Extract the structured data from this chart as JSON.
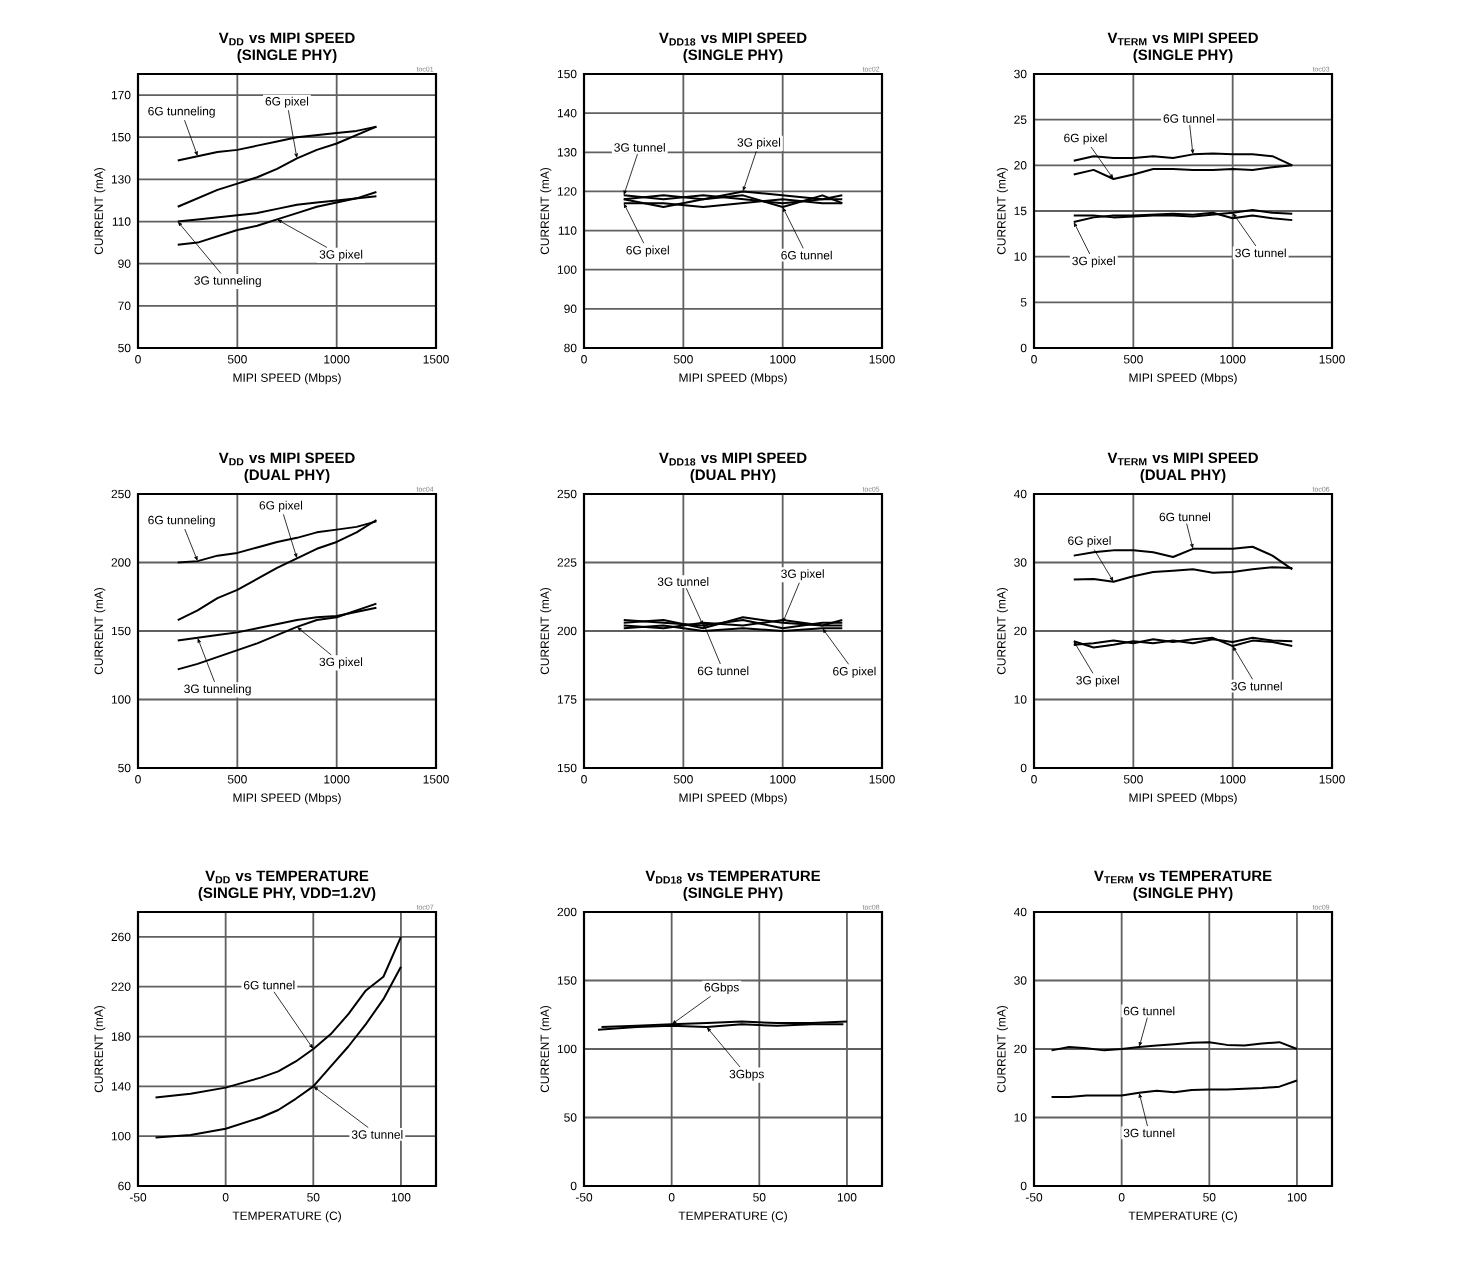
{
  "chart_data": [
    {
      "type": "line",
      "title": "V$_{DD}$ vs MIPI SPEED",
      "subtitle": "(SINGLE PHY)",
      "xlabel": "MIPI SPEED (Mbps)",
      "ylabel": "CURRENT (mA)",
      "xlim": [
        0,
        1500
      ],
      "ylim": [
        50,
        180
      ],
      "xticks": [
        0,
        500,
        1000,
        1500
      ],
      "yticks": [
        50,
        70,
        90,
        110,
        130,
        150,
        170
      ],
      "grid": true,
      "annotations": [
        "toc01"
      ],
      "series": [
        {
          "name": "6G tunneling",
          "color": "#000000",
          "x": [
            200,
            300,
            400,
            500,
            600,
            700,
            800,
            900,
            1000,
            1100,
            1200
          ],
          "values": [
            139,
            141,
            143,
            144,
            146,
            148,
            150,
            151,
            152,
            153,
            155
          ]
        },
        {
          "name": "6G pixel",
          "color": "#000000",
          "x": [
            200,
            300,
            400,
            500,
            600,
            700,
            800,
            900,
            1000,
            1100,
            1200
          ],
          "values": [
            117,
            121,
            125,
            128,
            131,
            135,
            140,
            144,
            147,
            151,
            155
          ]
        },
        {
          "name": "3G tunneling",
          "color": "#000000",
          "x": [
            200,
            300,
            400,
            500,
            600,
            700,
            800,
            900,
            1000,
            1100,
            1200
          ],
          "values": [
            110,
            111,
            112,
            113,
            114,
            116,
            118,
            119,
            120,
            121,
            122
          ]
        },
        {
          "name": "3G pixel",
          "color": "#000000",
          "x": [
            200,
            300,
            400,
            500,
            600,
            700,
            800,
            900,
            1000,
            1100,
            1200
          ],
          "values": [
            99,
            100,
            103,
            106,
            108,
            111,
            114,
            117,
            119,
            121,
            124
          ]
        }
      ]
    },
    {
      "type": "line",
      "title": "V$_{DD18}$ vs MIPI SPEED",
      "subtitle": "(SINGLE PHY)",
      "xlabel": "MIPI SPEED (Mbps)",
      "ylabel": "CURRENT (mA)",
      "xlim": [
        0,
        1500
      ],
      "ylim": [
        80,
        150
      ],
      "xticks": [
        0,
        500,
        1000,
        1500
      ],
      "yticks": [
        80,
        90,
        100,
        110,
        120,
        130,
        140,
        150
      ],
      "grid": true,
      "annotations": [
        "toc02"
      ],
      "series": [
        {
          "name": "3G tunnel",
          "color": "#000000",
          "x": [
            200,
            400,
            600,
            800,
            1000,
            1200,
            1300
          ],
          "values": [
            119,
            118,
            119,
            118,
            117,
            118,
            118
          ]
        },
        {
          "name": "3G pixel",
          "color": "#000000",
          "x": [
            200,
            400,
            600,
            800,
            1000,
            1200,
            1300
          ],
          "values": [
            118,
            119,
            118,
            120,
            119,
            118,
            119
          ]
        },
        {
          "name": "6G pixel",
          "color": "#000000",
          "x": [
            200,
            400,
            600,
            800,
            1000,
            1200,
            1300
          ],
          "values": [
            117,
            117,
            116,
            117,
            118,
            117,
            117
          ]
        },
        {
          "name": "6G tunnel",
          "color": "#000000",
          "x": [
            200,
            400,
            600,
            800,
            1000,
            1200,
            1300
          ],
          "values": [
            118,
            116,
            118,
            119,
            116,
            119,
            117
          ]
        }
      ]
    },
    {
      "type": "line",
      "title": "V$_{TERM}$ vs MIPI SPEED",
      "subtitle": "(SINGLE PHY)",
      "xlabel": "MIPI SPEED (Mbps)",
      "ylabel": "CURRENT (mA)",
      "xlim": [
        0,
        1500
      ],
      "ylim": [
        0,
        30
      ],
      "xticks": [
        0,
        500,
        1000,
        1500
      ],
      "yticks": [
        0,
        5,
        10,
        15,
        20,
        25,
        30
      ],
      "grid": true,
      "annotations": [
        "toc03"
      ],
      "series": [
        {
          "name": "6G tunnel",
          "color": "#000000",
          "x": [
            200,
            300,
            400,
            500,
            600,
            700,
            800,
            900,
            1000,
            1100,
            1200,
            1300
          ],
          "values": [
            20.5,
            21,
            20.8,
            20.8,
            21,
            20.8,
            21.2,
            21.3,
            21.2,
            21.2,
            21,
            20
          ]
        },
        {
          "name": "6G pixel",
          "color": "#000000",
          "x": [
            200,
            300,
            400,
            500,
            600,
            700,
            800,
            900,
            1000,
            1100,
            1200,
            1300
          ],
          "values": [
            19,
            19.5,
            18.5,
            19,
            19.6,
            19.6,
            19.5,
            19.5,
            19.6,
            19.5,
            19.8,
            20
          ]
        },
        {
          "name": "3G pixel",
          "color": "#000000",
          "x": [
            200,
            300,
            400,
            500,
            600,
            700,
            800,
            900,
            1000,
            1100,
            1200,
            1300
          ],
          "values": [
            13.8,
            14.3,
            14.5,
            14.5,
            14.6,
            14.7,
            14.6,
            14.8,
            14.2,
            14.5,
            14.2,
            14
          ]
        },
        {
          "name": "3G tunnel",
          "color": "#000000",
          "x": [
            200,
            300,
            400,
            500,
            600,
            700,
            800,
            900,
            1000,
            1100,
            1200,
            1300
          ],
          "values": [
            14.5,
            14.5,
            14.3,
            14.4,
            14.5,
            14.5,
            14.4,
            14.6,
            14.8,
            15.1,
            14.8,
            14.7
          ]
        }
      ]
    },
    {
      "type": "line",
      "title": "V$_{DD}$ vs MIPI SPEED",
      "subtitle": "(DUAL PHY)",
      "xlabel": "MIPI SPEED (Mbps)",
      "ylabel": "CURRENT (mA)",
      "xlim": [
        0,
        1500
      ],
      "ylim": [
        50,
        250
      ],
      "xticks": [
        0,
        500,
        1000,
        1500
      ],
      "yticks": [
        50,
        100,
        150,
        200,
        250
      ],
      "grid": true,
      "annotations": [
        "toc04"
      ],
      "series": [
        {
          "name": "6G tunneling",
          "color": "#000000",
          "x": [
            200,
            300,
            400,
            500,
            600,
            700,
            800,
            900,
            1000,
            1100,
            1200
          ],
          "values": [
            200,
            201,
            205,
            207,
            211,
            215,
            218,
            222,
            224,
            226,
            230
          ]
        },
        {
          "name": "6G pixel",
          "color": "#000000",
          "x": [
            200,
            300,
            400,
            500,
            600,
            700,
            800,
            900,
            1000,
            1100,
            1200
          ],
          "values": [
            158,
            165,
            174,
            180,
            188,
            196,
            203,
            210,
            215,
            222,
            231
          ]
        },
        {
          "name": "3G tunneling",
          "color": "#000000",
          "x": [
            200,
            300,
            400,
            500,
            600,
            700,
            800,
            900,
            1000,
            1100,
            1200
          ],
          "values": [
            143,
            145,
            147,
            149,
            152,
            155,
            158,
            160,
            161,
            164,
            167
          ]
        },
        {
          "name": "3G pixel",
          "color": "#000000",
          "x": [
            200,
            300,
            400,
            500,
            600,
            700,
            800,
            900,
            1000,
            1100,
            1200
          ],
          "values": [
            122,
            126,
            131,
            136,
            141,
            147,
            153,
            158,
            160,
            165,
            170
          ]
        }
      ]
    },
    {
      "type": "line",
      "title": "V$_{DD18}$ vs MIPI SPEED",
      "subtitle": "(DUAL PHY)",
      "xlabel": "MIPI SPEED (Mbps)",
      "ylabel": "CURRENT (mA)",
      "xlim": [
        0,
        1500
      ],
      "ylim": [
        150,
        250
      ],
      "xticks": [
        0,
        500,
        1000,
        1500
      ],
      "yticks": [
        150,
        175,
        200,
        225,
        250
      ],
      "grid": true,
      "annotations": [
        "toc05"
      ],
      "series": [
        {
          "name": "3G tunnel",
          "color": "#000000",
          "x": [
            200,
            400,
            600,
            800,
            1000,
            1200,
            1300
          ],
          "values": [
            204,
            203,
            202,
            204,
            201,
            203,
            203
          ]
        },
        {
          "name": "3G pixel",
          "color": "#000000",
          "x": [
            200,
            400,
            600,
            800,
            1000,
            1200,
            1300
          ],
          "values": [
            203,
            204,
            201,
            205,
            203,
            202,
            204
          ]
        },
        {
          "name": "6G tunnel",
          "color": "#000000",
          "x": [
            200,
            400,
            600,
            800,
            1000,
            1200,
            1300
          ],
          "values": [
            202,
            201,
            203,
            202,
            204,
            202,
            202
          ]
        },
        {
          "name": "6G pixel",
          "color": "#000000",
          "x": [
            200,
            400,
            600,
            800,
            1000,
            1200,
            1300
          ],
          "values": [
            201,
            202,
            200,
            201,
            200,
            201,
            201
          ]
        }
      ]
    },
    {
      "type": "line",
      "title": "V$_{TERM}$ vs MIPI SPEED",
      "subtitle": "(DUAL PHY)",
      "xlabel": "MIPI SPEED (Mbps)",
      "ylabel": "CURRENT (mA)",
      "xlim": [
        0,
        1500
      ],
      "ylim": [
        0,
        40
      ],
      "xticks": [
        0,
        500,
        1000,
        1500
      ],
      "yticks": [
        0,
        10,
        20,
        30,
        40
      ],
      "grid": true,
      "annotations": [
        "toc06"
      ],
      "series": [
        {
          "name": "6G tunnel",
          "color": "#000000",
          "x": [
            200,
            300,
            400,
            500,
            600,
            700,
            800,
            900,
            1000,
            1100,
            1200,
            1300
          ],
          "values": [
            31,
            31.5,
            31.8,
            31.8,
            31.5,
            30.8,
            32,
            32,
            32,
            32.3,
            31,
            29
          ]
        },
        {
          "name": "6G pixel",
          "color": "#000000",
          "x": [
            200,
            300,
            400,
            500,
            600,
            700,
            800,
            900,
            1000,
            1100,
            1200,
            1300
          ],
          "values": [
            27.5,
            27.6,
            27.2,
            28,
            28.6,
            28.8,
            29,
            28.5,
            28.6,
            29,
            29.3,
            29.2
          ]
        },
        {
          "name": "3G pixel",
          "color": "#000000",
          "x": [
            200,
            300,
            400,
            500,
            600,
            700,
            800,
            900,
            1000,
            1100,
            1200,
            1300
          ],
          "values": [
            18.5,
            17.6,
            18,
            18.5,
            18.2,
            18.6,
            18.2,
            18.8,
            18.4,
            19,
            18.6,
            18.5
          ]
        },
        {
          "name": "3G tunnel",
          "color": "#000000",
          "x": [
            200,
            300,
            400,
            500,
            600,
            700,
            800,
            900,
            1000,
            1100,
            1200,
            1300
          ],
          "values": [
            18,
            18.2,
            18.6,
            18.2,
            18.8,
            18.4,
            18.8,
            19,
            17.8,
            18.6,
            18.4,
            17.8
          ]
        }
      ]
    },
    {
      "type": "line",
      "title": "V$_{DD}$ vs TEMPERATURE",
      "subtitle": "(SINGLE PHY, VDD=1.2V)",
      "xlabel": "TEMPERATURE (C)",
      "ylabel": "CURRENT (mA)",
      "xlim": [
        -50,
        120
      ],
      "ylim": [
        60,
        280
      ],
      "xticks": [
        -50,
        0,
        50,
        100
      ],
      "yticks": [
        60,
        100,
        140,
        180,
        220,
        260
      ],
      "grid": true,
      "annotations": [
        "toc07"
      ],
      "series": [
        {
          "name": "6G tunnel",
          "color": "#000000",
          "x": [
            -40,
            -20,
            0,
            20,
            30,
            40,
            50,
            60,
            70,
            80,
            90,
            100
          ],
          "values": [
            131,
            134,
            139,
            147,
            152,
            160,
            170,
            182,
            198,
            217,
            228,
            260
          ]
        },
        {
          "name": "3G tunnel",
          "color": "#000000",
          "x": [
            -40,
            -20,
            0,
            20,
            30,
            40,
            50,
            60,
            70,
            80,
            90,
            100
          ],
          "values": [
            99,
            101,
            106,
            115,
            121,
            130,
            140,
            156,
            172,
            190,
            210,
            236
          ]
        }
      ]
    },
    {
      "type": "line",
      "title": "V$_{DD18}$ vs TEMPERATURE",
      "subtitle": "(SINGLE PHY)",
      "xlabel": "TEMPERATURE (C)",
      "ylabel": "CURRENT (mA)",
      "xlim": [
        -50,
        120
      ],
      "ylim": [
        0,
        200
      ],
      "xticks": [
        -50,
        0,
        50,
        100
      ],
      "yticks": [
        0,
        50,
        100,
        150,
        200
      ],
      "grid": true,
      "annotations": [
        "toc08"
      ],
      "series": [
        {
          "name": "6Gbps",
          "color": "#000000",
          "x": [
            -40,
            -20,
            0,
            20,
            40,
            60,
            80,
            100
          ],
          "values": [
            116,
            117,
            118,
            119,
            120,
            119,
            119,
            120
          ]
        },
        {
          "name": "3Gbps",
          "color": "#000000",
          "x": [
            -42,
            -20,
            0,
            20,
            40,
            60,
            80,
            98
          ],
          "values": [
            114,
            116,
            117,
            116,
            118,
            117,
            118,
            118
          ]
        }
      ]
    },
    {
      "type": "line",
      "title": "V$_{TERM}$ vs TEMPERATURE",
      "subtitle": "(SINGLE PHY)",
      "xlabel": "TEMPERATURE (C)",
      "ylabel": "CURRENT (mA)",
      "xlim": [
        -50,
        120
      ],
      "ylim": [
        0,
        40
      ],
      "xticks": [
        -50,
        0,
        50,
        100
      ],
      "yticks": [
        0,
        10,
        20,
        30,
        40
      ],
      "grid": true,
      "annotations": [
        "toc09"
      ],
      "series": [
        {
          "name": "6G tunnel",
          "color": "#000000",
          "x": [
            -40,
            -30,
            -20,
            -10,
            0,
            10,
            20,
            30,
            40,
            50,
            60,
            70,
            80,
            90,
            100
          ],
          "values": [
            19.8,
            20.3,
            20.1,
            19.8,
            20,
            20.3,
            20.5,
            20.7,
            20.9,
            21,
            20.6,
            20.5,
            20.8,
            21,
            20
          ]
        },
        {
          "name": "3G tunnel",
          "color": "#000000",
          "x": [
            -40,
            -30,
            -20,
            -10,
            0,
            10,
            20,
            30,
            40,
            50,
            60,
            70,
            80,
            90,
            100
          ],
          "values": [
            13,
            13,
            13.2,
            13.2,
            13.2,
            13.6,
            13.9,
            13.7,
            14,
            14.1,
            14.1,
            14.2,
            14.3,
            14.5,
            15.4
          ]
        }
      ]
    }
  ]
}
